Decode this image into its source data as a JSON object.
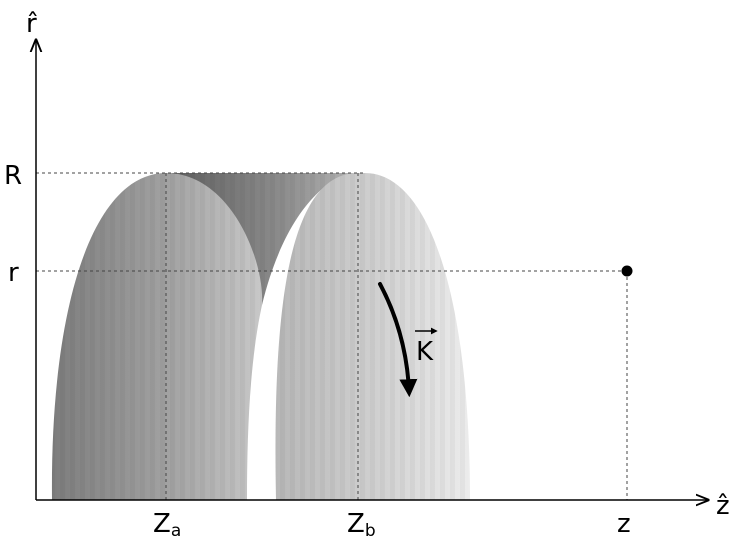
{
  "labels": {
    "r_axis": "r̂",
    "z_axis": "ẑ",
    "R": "R",
    "r": "r",
    "z": "z",
    "za_main": "Z",
    "za_sub": "a",
    "zb_main": "Z",
    "zb_sub": "b",
    "k_vector": "K"
  },
  "colors": {
    "axis": "#000000",
    "guide": "#333333",
    "shape_dark": "#5c5c5c",
    "shape_mid": "#9a9a9a",
    "shape_light": "#e4e4e4",
    "point": "#000000",
    "arrow": "#000000"
  }
}
